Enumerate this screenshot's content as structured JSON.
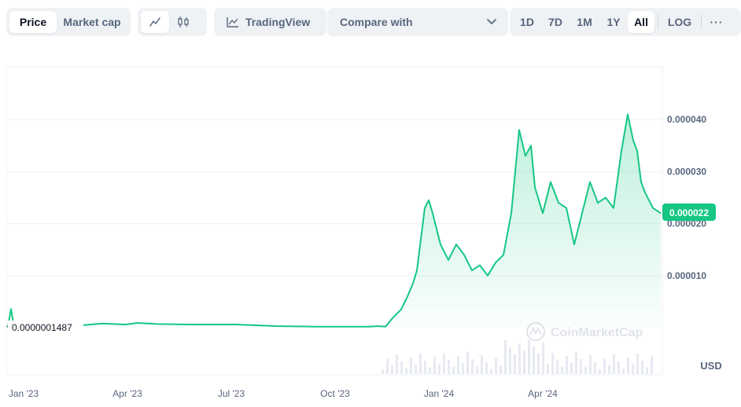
{
  "toolbar": {
    "price_tab": "Price",
    "market_cap_tab": "Market cap",
    "line_icon": "line-chart-icon",
    "candle_icon": "candlestick-icon",
    "tradingview_label": "TradingView",
    "tradingview_icon": "tradingview-chart-icon",
    "compare_label": "Compare with",
    "compare_icon": "chevron-down-icon",
    "ranges": [
      "1D",
      "7D",
      "1M",
      "1Y",
      "All"
    ],
    "active_range": "All",
    "log_label": "LOG",
    "more_label": "···"
  },
  "watermark": "CoinMarketCap",
  "colors": {
    "line": "#16c784",
    "price_badge_bg": "#16c784",
    "grid": "#eff2f5",
    "text_muted": "#58667e",
    "toolbar_bg": "#eff2f5"
  },
  "chart_data": {
    "type": "area",
    "currency_label": "USD",
    "y_ticks": [
      "0.000010",
      "0.000020",
      "0.000030",
      "0.000040"
    ],
    "ylim": [
      0,
      5e-05
    ],
    "x_ticks": [
      "Jan '23",
      "Apr '23",
      "Jul '23",
      "Oct '23",
      "Jan '24",
      "Apr '24"
    ],
    "current_price": "0.000022",
    "start_price": "0.0000001487",
    "grid": true,
    "series": [
      {
        "values": [
          1.487e-07,
          3.6e-06,
          9e-07,
          3e-07,
          4e-07,
          5e-07,
          4e-07,
          8e-07,
          6e-07,
          9e-07,
          7e-07,
          6e-07,
          6e-07,
          3e-07,
          2e-07,
          2e-07,
          2e-07,
          2e-07,
          2e-07,
          3e-07,
          2e-07,
          2e-06,
          3.5e-06,
          6e-06,
          8.5e-06,
          1.1e-05,
          1.7e-05,
          2.3e-05,
          2.45e-05,
          2.2e-05,
          1.6e-05,
          1.3e-05,
          1.6e-05,
          1.4e-05,
          1.1e-05,
          1.2e-05,
          1e-05,
          1.25e-05,
          1.4e-05,
          2.2e-05,
          3.8e-05,
          3.3e-05,
          3.5e-05,
          2.7e-05,
          2.2e-05,
          2.8e-05,
          2.4e-05,
          2.3e-05,
          1.6e-05,
          2.2e-05,
          2.8e-05,
          2.4e-05,
          2.5e-05,
          2.3e-05,
          3.4e-05,
          4.1e-05,
          3.6e-05,
          3.4e-05,
          2.8e-05,
          2.6e-05,
          2.3e-05,
          2.2e-05
        ]
      }
    ]
  }
}
